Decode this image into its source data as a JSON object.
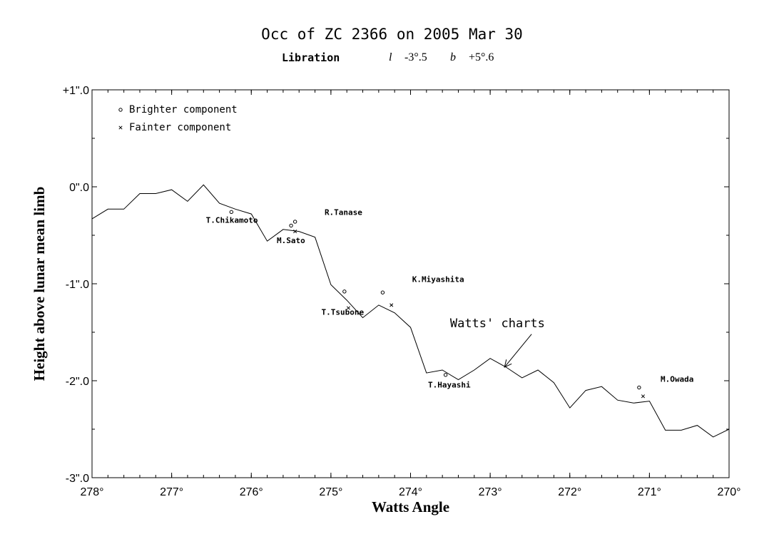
{
  "title": "Occ of ZC 2366 on 2005 Mar 30",
  "libration": {
    "label": "Libration",
    "l_symbol": "l",
    "l_value": "-3°.5",
    "b_symbol": "b",
    "b_value": "+5°.6"
  },
  "chart_data": {
    "type": "line",
    "xlabel": "Watts Angle",
    "ylabel": "Height above lunar mean limb",
    "xlim": [
      278,
      270
    ],
    "ylim": [
      -3,
      1
    ],
    "x_ticks": [
      {
        "value": 278,
        "label": "278°"
      },
      {
        "value": 277,
        "label": "277°"
      },
      {
        "value": 276,
        "label": "276°"
      },
      {
        "value": 275,
        "label": "275°"
      },
      {
        "value": 274,
        "label": "274°"
      },
      {
        "value": 273,
        "label": "273°"
      },
      {
        "value": 272,
        "label": "272°"
      },
      {
        "value": 271,
        "label": "271°"
      },
      {
        "value": 270,
        "label": "270°"
      }
    ],
    "y_ticks": [
      {
        "value": 1,
        "label": "+1\".0"
      },
      {
        "value": 0,
        "label": "0\".0"
      },
      {
        "value": -1,
        "label": "-1\".0"
      },
      {
        "value": -2,
        "label": "-2\".0"
      },
      {
        "value": -3,
        "label": "-3\".0"
      }
    ],
    "legend_position": "top-left",
    "legend": [
      {
        "symbol": "o",
        "label": "Brighter component"
      },
      {
        "symbol": "x",
        "label": "Fainter component"
      }
    ],
    "profile": {
      "x": [
        278.0,
        277.8,
        277.6,
        277.4,
        277.2,
        277.0,
        276.8,
        276.6,
        276.4,
        276.2,
        276.0,
        275.8,
        275.6,
        275.4,
        275.2,
        275.0,
        274.8,
        274.6,
        274.4,
        274.2,
        274.0,
        273.8,
        273.6,
        273.4,
        273.2,
        273.0,
        272.8,
        272.6,
        272.4,
        272.2,
        272.0,
        271.8,
        271.6,
        271.4,
        271.2,
        271.0,
        270.8,
        270.6,
        270.4,
        270.2,
        270.0
      ],
      "y": [
        -0.33,
        -0.23,
        -0.23,
        -0.07,
        -0.07,
        -0.03,
        -0.15,
        0.02,
        -0.17,
        -0.23,
        -0.28,
        -0.56,
        -0.44,
        -0.46,
        -0.52,
        -1.01,
        -1.17,
        -1.35,
        -1.22,
        -1.3,
        -1.45,
        -1.92,
        -1.89,
        -1.99,
        -1.89,
        -1.77,
        -1.86,
        -1.97,
        -1.89,
        -2.02,
        -2.28,
        -2.1,
        -2.06,
        -2.2,
        -2.23,
        -2.21,
        -2.51,
        -2.51,
        -2.46,
        -2.58,
        -2.5
      ]
    },
    "observations": [
      {
        "observer": "T.Chikamoto",
        "brighter": [
          276.25,
          -0.26
        ],
        "label_pos": [
          276.57,
          -0.37
        ]
      },
      {
        "observer": "R.Tanase",
        "brighter": [
          275.45,
          -0.36
        ],
        "label_pos": [
          275.08,
          -0.29
        ]
      },
      {
        "observer": "M.Sato",
        "brighter": [
          275.5,
          -0.4
        ],
        "fainter": [
          275.45,
          -0.46
        ],
        "label_pos": [
          275.68,
          -0.58
        ]
      },
      {
        "observer": "T.Tsubone",
        "brighter": [
          274.83,
          -1.08
        ],
        "fainter": [
          274.78,
          -1.25
        ],
        "label_pos": [
          275.12,
          -1.32
        ]
      },
      {
        "observer": "K.Miyashita",
        "brighter": [
          274.35,
          -1.09
        ],
        "fainter": [
          274.24,
          -1.22
        ],
        "label_pos": [
          273.98,
          -0.98
        ]
      },
      {
        "observer": "T.Hayashi",
        "brighter": [
          273.56,
          -1.94
        ],
        "label_pos": [
          273.78,
          -2.07
        ]
      },
      {
        "observer": "M.Owada",
        "brighter": [
          271.13,
          -2.07
        ],
        "fainter": [
          271.08,
          -2.16
        ],
        "label_pos": [
          270.86,
          -2.01
        ]
      }
    ],
    "annotation": {
      "text": "Watts' charts",
      "text_pos": [
        272.25,
        -1.45
      ],
      "arrow_from": [
        272.48,
        -1.52
      ],
      "arrow_to": [
        272.82,
        -1.86
      ]
    }
  }
}
